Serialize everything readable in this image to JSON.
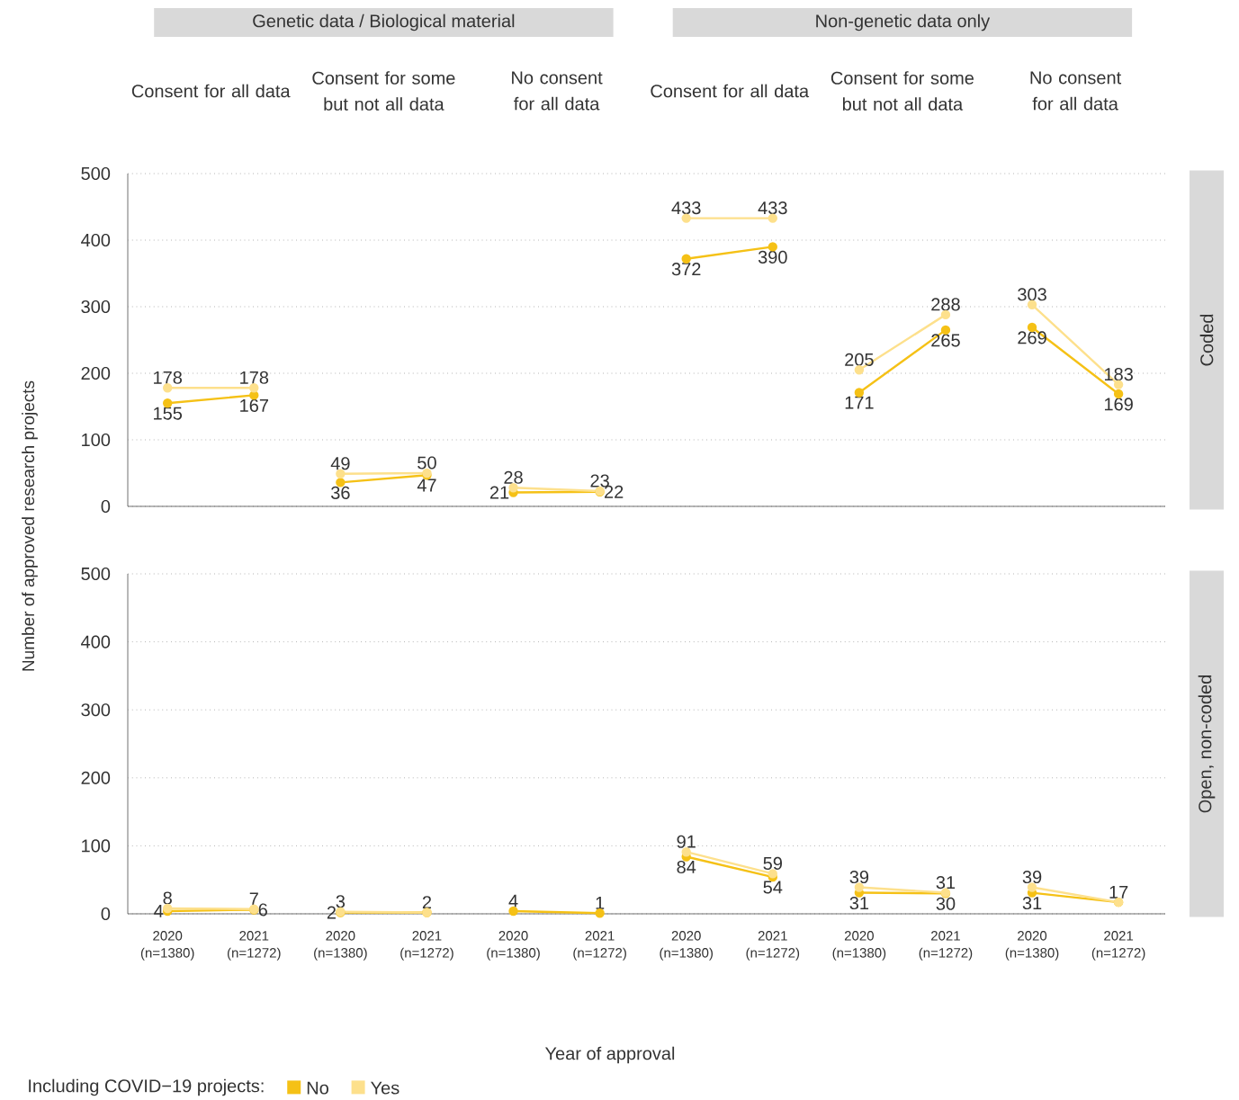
{
  "chart_data": [
    {
      "type": "line",
      "ylabel": "Number of approved research projects",
      "categories": [
        null,
        null,
        null,
        null,
        null,
        null,
        null,
        null,
        null,
        null,
        null,
        null
      ],
      "tick_labels": "y",
      "ylim": [
        0,
        500
      ],
      "yticks": [
        0,
        100,
        200,
        300,
        400,
        500
      ],
      "grid": "y",
      "marker": "circle",
      "annotations": [
        "Genetic data / Biological material",
        "Non-genetic data only",
        "Consent for all data",
        "Consent for some but not all data",
        "No consent for all data",
        "Consent for all data",
        "Consent for some but not all data",
        "No consent for all data",
        "Coded"
      ],
      "series": [
        {
          "color": "#f5c116",
          "values": [
            155,
            167,
            36,
            47,
            21,
            22,
            372,
            390,
            171,
            265,
            269,
            169
          ],
          "value_labels": [
            "155",
            "167",
            "36",
            "47",
            "21",
            "22",
            "372",
            "390",
            "171",
            "265",
            "269",
            "169"
          ]
        },
        {
          "color": "#fde08c",
          "values": [
            178,
            178,
            49,
            50,
            28,
            23,
            433,
            433,
            205,
            288,
            303,
            183
          ],
          "value_labels": [
            "178",
            "178",
            "49",
            "50",
            "28",
            "23",
            "433",
            "433",
            "205",
            "288",
            "303",
            "183"
          ]
        }
      ]
    },
    {
      "type": "line",
      "xlabel": "Year of approval",
      "annotations": [
        "Open, non-coded"
      ],
      "categories": [
        "2020 (n=1380)",
        "2021 (n=1272)",
        "2020 (n=1380)",
        "2021 (n=1272)",
        "2020 (n=1380)",
        "2021 (n=1272)",
        "2020 (n=1380)",
        "2021 (n=1272)",
        "2020 (n=1380)",
        "2021 (n=1272)",
        "2020 (n=1380)",
        "2021 (n=1272)"
      ],
      "ylim": [
        0,
        500
      ],
      "yticks": [
        0,
        100,
        200,
        300,
        400,
        500
      ],
      "grid": "y",
      "marker": "circle",
      "legend": "bottom",
      "legend_title": "Including COVID−19 projects:",
      "series": [
        {
          "name": "No",
          "color": "#f5c116",
          "values": [
            4,
            6,
            2,
            2,
            4,
            1,
            84,
            54,
            31,
            30,
            31,
            17
          ],
          "value_labels": [
            "4",
            "6",
            "2",
            "2",
            "4",
            "1",
            "84",
            "54",
            "31",
            "30",
            "31",
            "17"
          ]
        },
        {
          "name": "Yes",
          "color": "#fde08c",
          "values": [
            8,
            7,
            3,
            2,
            null,
            null,
            91,
            59,
            39,
            31,
            39,
            17
          ],
          "value_labels": [
            "8",
            "7",
            "3",
            null,
            null,
            null,
            "91",
            "59",
            "39",
            "31",
            "39",
            null
          ]
        }
      ]
    }
  ]
}
